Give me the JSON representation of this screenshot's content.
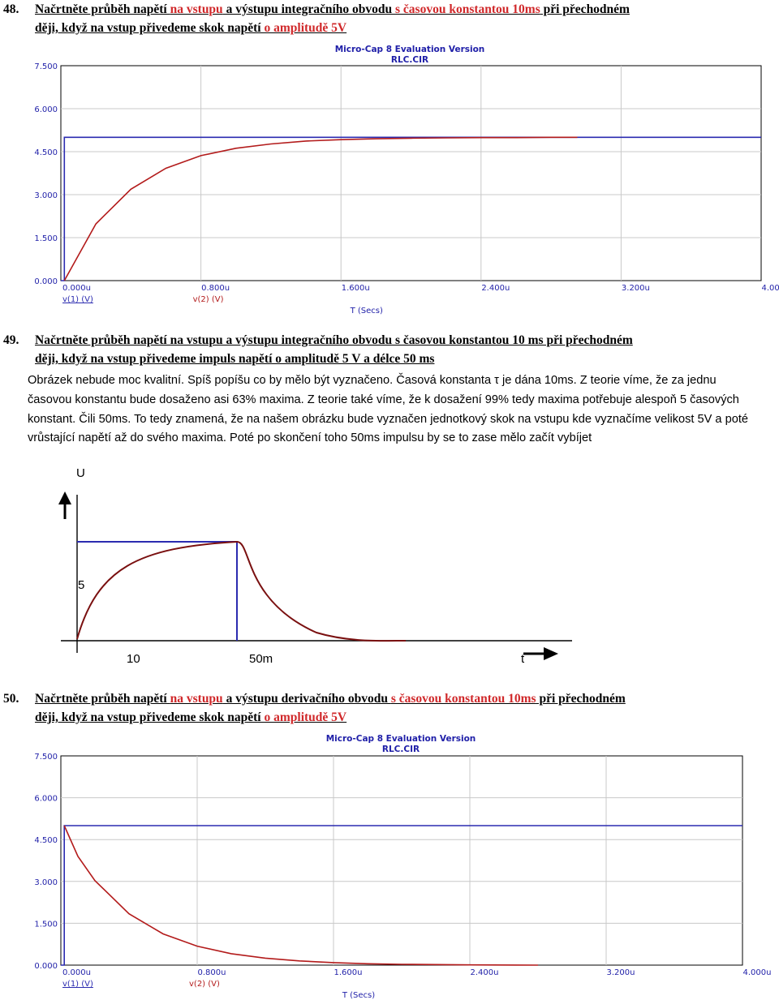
{
  "section48": {
    "number": "48.",
    "line1_a": "Načrtněte průběh napětí ",
    "line1_b": "na vstupu",
    "line1_c": " a výstupu integračního obvodu ",
    "line1_d": "s časovou konstantou 10ms",
    "line1_e": " při přechodném",
    "line2_a": "ději, když na vstup přivedeme skok napětí ",
    "line2_b": "o amplitudě 5V"
  },
  "section49": {
    "number": "49.",
    "line1": "Načrtněte průběh napětí na vstupu a výstupu integračního obvodu s časovou konstantou 10 ms při přechodném",
    "line2": "ději, když na vstup přivedeme impuls napětí o amplitudě 5 V a délce 50 ms",
    "paragraph": "Obrázek nebude moc kvalitní. Spíš popíšu co by mělo být vyznačeno. Časová konstanta τ je dána 10ms. Z teorie víme, že za jednu časovou konstantu bude dosaženo asi 63% maxima. Z teorie také víme, že k dosažení 99% tedy maxima potřebuje alespoň 5 časových konstant. Čili 50ms.   To tedy znamená, že na našem obrázku bude vyznačen jednotkový skok na vstupu kde vyznačíme velikost 5V a poté vrůstající napětí až do svého maxima. Poté po skončení toho 50ms impulsu by se to zase mělo začít vybíjet",
    "sketch": {
      "y_axis_label": "U",
      "level_label": "5",
      "tick_label_tau": "10",
      "tick_label_end": "50m",
      "x_axis_label": "t"
    }
  },
  "section50": {
    "number": "50.",
    "line1_a": "Načrtněte průběh napětí ",
    "line1_b": "na vstupu",
    "line1_c": " a výstupu derivačního obvodu ",
    "line1_d": "s časovou konstantou 10ms",
    "line1_e": " při přechodném",
    "line2_a": "ději, když na vstup přivedeme skok napětí ",
    "line2_b": "o amplitudě 5V"
  },
  "colors": {
    "input_trace": "#2b2bb0",
    "output_trace": "#b31b1b",
    "grid": "#c8c8c8",
    "title_text": "#1f1fa8"
  },
  "chart_data": [
    {
      "type": "line",
      "title": "Micro-Cap 8 Evaluation Version",
      "subtitle": "RLC.CIR",
      "xlabel": "T (Secs)",
      "xlim": [
        0,
        4.0
      ],
      "ylim": [
        0,
        7.5
      ],
      "x_ticks": [
        "0.000u",
        "0.800u",
        "1.600u",
        "2.400u",
        "3.200u",
        "4.000u"
      ],
      "y_ticks": [
        "0.000",
        "1.500",
        "3.000",
        "4.500",
        "6.000",
        "7.500"
      ],
      "legend": [
        "v(1) (V)",
        "v(2) (V)"
      ],
      "series": [
        {
          "name": "v(1) (V)",
          "x": [
            0,
            0.02,
            0.02,
            4.0
          ],
          "y": [
            0,
            0,
            5.0,
            5.0
          ]
        },
        {
          "name": "v(2) (V)",
          "x": [
            0.02,
            0.2,
            0.4,
            0.6,
            0.8,
            1.0,
            1.2,
            1.4,
            1.6,
            1.8,
            2.0,
            2.2,
            2.4,
            2.6,
            2.8,
            2.95
          ],
          "y": [
            0,
            1.98,
            3.19,
            3.92,
            4.36,
            4.62,
            4.77,
            4.87,
            4.92,
            4.95,
            4.97,
            4.98,
            4.99,
            4.99,
            5.0,
            5.0
          ]
        }
      ]
    },
    {
      "type": "line",
      "title": "Micro-Cap 8 Evaluation Version",
      "subtitle": "RLC.CIR",
      "xlabel": "T (Secs)",
      "xlim": [
        0,
        4.0
      ],
      "ylim": [
        0,
        7.5
      ],
      "x_ticks": [
        "0.000u",
        "0.800u",
        "1.600u",
        "2.400u",
        "3.200u",
        "4.000u"
      ],
      "y_ticks": [
        "0.000",
        "1.500",
        "3.000",
        "4.500",
        "6.000",
        "7.500"
      ],
      "legend": [
        "v(1) (V)",
        "v(2) (V)"
      ],
      "series": [
        {
          "name": "v(1) (V)",
          "x": [
            0,
            0.02,
            0.02,
            4.0
          ],
          "y": [
            0,
            0,
            5.0,
            5.0
          ]
        },
        {
          "name": "v(2) (V)",
          "x": [
            0.02,
            0.1,
            0.2,
            0.4,
            0.6,
            0.8,
            1.0,
            1.2,
            1.4,
            1.6,
            1.8,
            2.0,
            2.2,
            2.4,
            2.8
          ],
          "y": [
            5.0,
            3.9,
            3.03,
            1.84,
            1.12,
            0.68,
            0.41,
            0.25,
            0.15,
            0.09,
            0.05,
            0.03,
            0.02,
            0.01,
            0.0
          ]
        }
      ]
    }
  ]
}
